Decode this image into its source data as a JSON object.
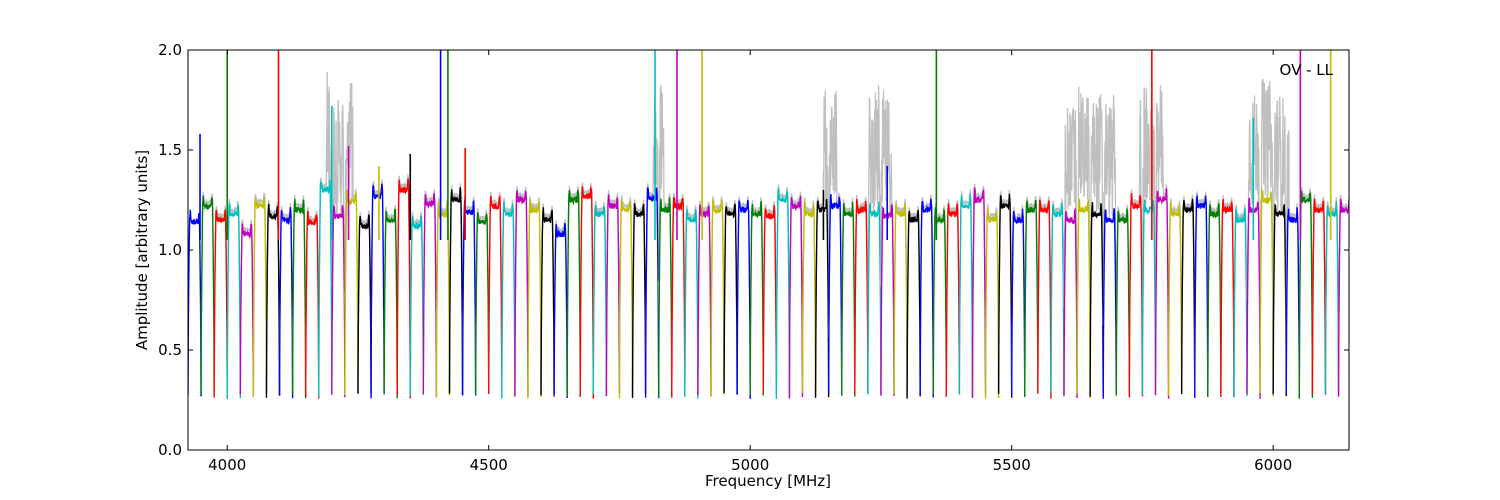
{
  "chart_data": {
    "type": "line",
    "title": "",
    "xlabel": "Frequency [MHz]",
    "ylabel": "Amplitude [arbitrary units]",
    "xlim": [
      3925,
      6145
    ],
    "ylim": [
      0.0,
      2.0
    ],
    "grid": false,
    "x_ticks": [
      4000,
      4500,
      5000,
      5500,
      6000
    ],
    "x_tick_labels": [
      "4000",
      "4500",
      "5000",
      "5500",
      "6000"
    ],
    "y_ticks": [
      0.0,
      0.5,
      1.0,
      1.5,
      2.0
    ],
    "y_tick_labels": [
      "0.0",
      "0.5",
      "1.0",
      "1.5",
      "2.0"
    ],
    "annotation": "OV - LL",
    "colors": {
      "raw": "#bfbfbf",
      "cycle": [
        "#0000ff",
        "#008000",
        "#ff0000",
        "#00bfbf",
        "#bf00bf",
        "#bfbf00",
        "#000000"
      ]
    },
    "channel_width_mhz": 25,
    "channel_level": [
      1.14,
      1.22,
      1.15,
      1.18,
      1.08,
      1.22,
      1.17,
      1.15,
      1.2,
      1.14,
      1.3,
      1.17,
      1.24,
      1.12,
      1.27,
      1.15,
      1.3,
      1.12,
      1.23,
      1.18,
      1.25,
      1.19,
      1.14,
      1.22,
      1.18,
      1.25,
      1.2,
      1.15,
      1.08,
      1.25,
      1.27,
      1.18,
      1.22,
      1.2,
      1.18,
      1.26,
      1.2,
      1.22,
      1.15,
      1.18,
      1.2,
      1.18,
      1.2,
      1.18,
      1.17,
      1.25,
      1.22,
      1.18,
      1.2,
      1.22,
      1.18,
      1.2,
      1.18,
      1.17,
      1.18,
      1.15,
      1.2,
      1.15,
      1.18,
      1.22,
      1.25,
      1.15,
      1.22,
      1.15,
      1.2,
      1.2,
      1.18,
      1.15,
      1.2,
      1.18,
      1.15,
      1.15,
      1.22,
      1.2,
      1.25,
      1.18,
      1.2,
      1.22,
      1.18,
      1.2,
      1.15,
      1.2,
      1.25,
      1.18,
      1.15,
      1.25,
      1.2,
      1.18,
      1.2
    ],
    "rfi_spikes": [
      {
        "x": 3948,
        "y": 1.58
      },
      {
        "x": 4000,
        "y": 2.0
      },
      {
        "x": 4098,
        "y": 2.0
      },
      {
        "x": 4200,
        "y": 1.72
      },
      {
        "x": 4232,
        "y": 1.52
      },
      {
        "x": 4290,
        "y": 1.42
      },
      {
        "x": 4350,
        "y": 1.48
      },
      {
        "x": 4408,
        "y": 2.0
      },
      {
        "x": 4422,
        "y": 2.0
      },
      {
        "x": 4455,
        "y": 1.51
      },
      {
        "x": 4818,
        "y": 2.0
      },
      {
        "x": 4860,
        "y": 2.0
      },
      {
        "x": 4908,
        "y": 2.0
      },
      {
        "x": 5140,
        "y": 1.3
      },
      {
        "x": 5262,
        "y": 1.42
      },
      {
        "x": 5356,
        "y": 2.0
      },
      {
        "x": 5768,
        "y": 2.0
      },
      {
        "x": 5962,
        "y": 1.66
      },
      {
        "x": 6052,
        "y": 2.0
      },
      {
        "x": 6110,
        "y": 2.0
      }
    ],
    "raw_rfi_regions": [
      [
        4190,
        4240
      ],
      [
        4815,
        4835
      ],
      [
        5140,
        5165
      ],
      [
        5225,
        5270
      ],
      [
        5600,
        5700
      ],
      [
        5745,
        5790
      ],
      [
        5950,
        6030
      ]
    ]
  }
}
